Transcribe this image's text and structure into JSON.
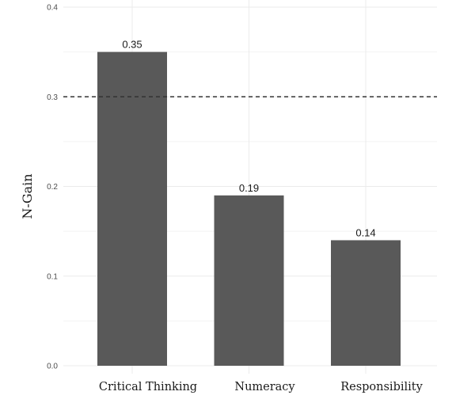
{
  "chart_data": {
    "type": "bar",
    "title": "",
    "xlabel": "",
    "ylabel": "N-Gain",
    "categories": [
      "Critical Thinking",
      "Numeracy",
      "Responsibility"
    ],
    "values": [
      0.35,
      0.19,
      0.14
    ],
    "data_labels": [
      "0.35",
      "0.19",
      "0.14"
    ],
    "ylim": [
      0,
      0.4
    ],
    "yticks": [
      0.0,
      0.1,
      0.2,
      0.3,
      0.4
    ],
    "ytick_labels": [
      "0.0",
      "0.1",
      "0.2",
      "0.3",
      "0.4"
    ],
    "reference_line": {
      "y": 0.3,
      "style": "dashed"
    },
    "grid": true,
    "legend": "none",
    "colors": {
      "bar": "#595959",
      "grid": "#ebebeb",
      "reference": "#333333"
    }
  }
}
